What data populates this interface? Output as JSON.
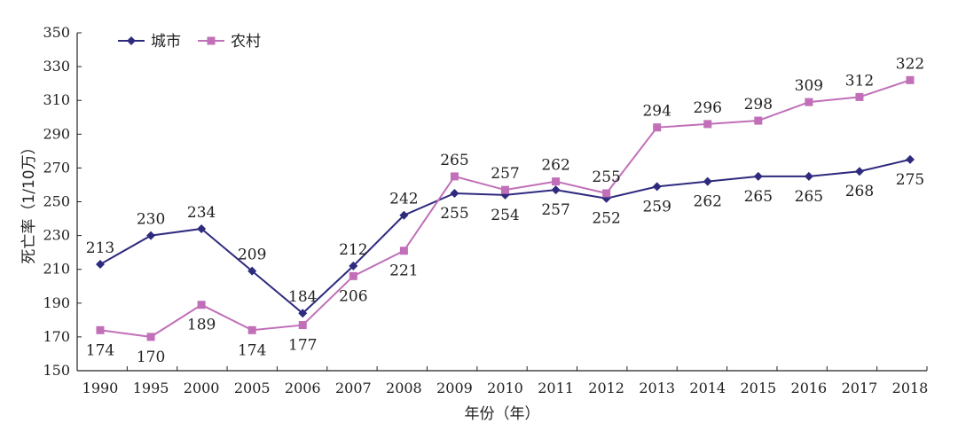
{
  "chart_data": {
    "type": "line",
    "title": "",
    "xlabel": "年份（年）",
    "ylabel": "死亡率（1/10万）",
    "categories": [
      "1990",
      "1995",
      "2000",
      "2005",
      "2006",
      "2007",
      "2008",
      "2009",
      "2010",
      "2011",
      "2012",
      "2013",
      "2014",
      "2015",
      "2016",
      "2017",
      "2018"
    ],
    "ylim": [
      150,
      350
    ],
    "yticks": [
      150,
      170,
      190,
      210,
      230,
      250,
      270,
      290,
      310,
      330,
      350
    ],
    "grid": false,
    "legend_position": "top-left",
    "series": [
      {
        "name": "城市",
        "color": "#2e2a7e",
        "marker": "diamond",
        "values": [
          213,
          230,
          234,
          209,
          184,
          212,
          242,
          255,
          254,
          257,
          252,
          259,
          262,
          265,
          265,
          268,
          275
        ],
        "label_positions": [
          "above",
          "above",
          "above",
          "above",
          "above",
          "above",
          "above",
          "below",
          "below",
          "below",
          "below",
          "below",
          "below",
          "below",
          "below",
          "below",
          "below"
        ]
      },
      {
        "name": "农村",
        "color": "#c06fb8",
        "marker": "square",
        "values": [
          174,
          170,
          189,
          174,
          177,
          206,
          221,
          265,
          257,
          262,
          255,
          294,
          296,
          298,
          309,
          312,
          322
        ],
        "label_positions": [
          "below",
          "below",
          "below",
          "below",
          "below",
          "below",
          "below",
          "above",
          "above",
          "above",
          "above",
          "above",
          "above",
          "above",
          "above",
          "above",
          "above"
        ]
      }
    ]
  }
}
